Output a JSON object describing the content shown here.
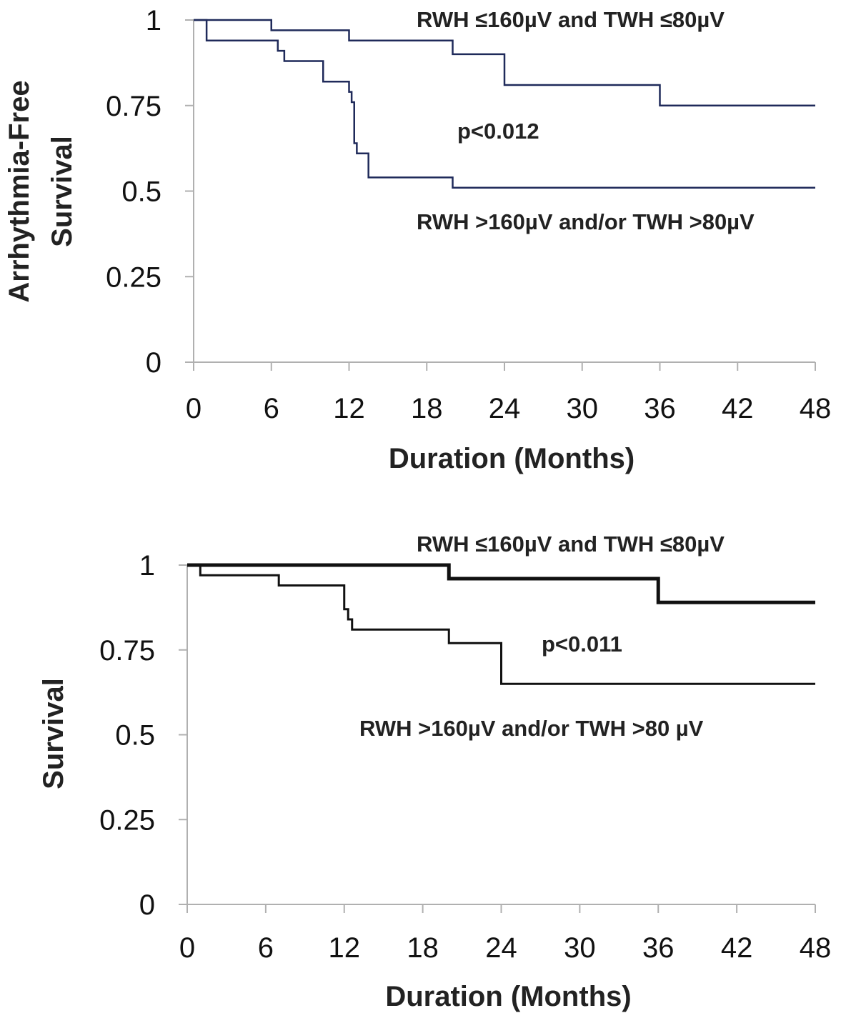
{
  "chart_data": [
    {
      "type": "line",
      "step": true,
      "title": "",
      "xlabel": "Duration  (Months)",
      "ylabel": "Arrhythmia-Free Survival",
      "ylabel_lines": [
        "Arrhythmia-Free",
        "Survival"
      ],
      "xlim": [
        0,
        48
      ],
      "ylim": [
        0,
        1
      ],
      "xticks": [
        "0",
        "6",
        "12",
        "18",
        "24",
        "30",
        "36",
        "42",
        "48"
      ],
      "yticks": [
        "0",
        "0.25",
        "0.5",
        "0.75",
        "1"
      ],
      "grid": false,
      "annotations": [
        "RWH ≤160µV and TWH ≤80µV",
        "p<0.012",
        "RWH >160µV and/or  TWH >80µV"
      ],
      "color": "#1f2a5a",
      "series": [
        {
          "name": "RWH ≤160µV and TWH ≤80µV",
          "width": "thin",
          "x": [
            0,
            6,
            12,
            20,
            24,
            36,
            48
          ],
          "y": [
            1,
            0.97,
            0.94,
            0.9,
            0.81,
            0.75,
            0.75
          ]
        },
        {
          "name": "RWH >160µV and/or  TWH >80µV",
          "width": "thin",
          "x": [
            0,
            1,
            6.5,
            7,
            10,
            12,
            12.2,
            12.4,
            12.6,
            13,
            13.5,
            20,
            48
          ],
          "y": [
            1,
            0.94,
            0.91,
            0.88,
            0.82,
            0.79,
            0.76,
            0.64,
            0.61,
            0.61,
            0.54,
            0.51,
            0.51
          ]
        }
      ]
    },
    {
      "type": "line",
      "step": true,
      "title": "",
      "xlabel": "Duration  (Months)",
      "ylabel": "Survival",
      "ylabel_lines": [
        "Survival"
      ],
      "xlim": [
        0,
        48
      ],
      "ylim": [
        0,
        1
      ],
      "xticks": [
        "0",
        "6",
        "12",
        "18",
        "24",
        "30",
        "36",
        "42",
        "48"
      ],
      "yticks": [
        "0",
        "0.25",
        "0.5",
        "0.75",
        "1"
      ],
      "grid": false,
      "annotations": [
        "RWH ≤160µV and TWH ≤80µV",
        "p<0.011",
        "RWH >160µV and/or TWH >80 µV"
      ],
      "color": "#111111",
      "series": [
        {
          "name": "RWH ≤160µV and TWH ≤80µV",
          "width": "thick",
          "x": [
            0,
            20,
            36,
            48
          ],
          "y": [
            1,
            0.96,
            0.89,
            0.89
          ]
        },
        {
          "name": "RWH >160µV and/or TWH >80 µV",
          "width": "thin",
          "x": [
            0,
            1,
            7,
            12,
            12.3,
            12.6,
            20,
            24,
            48
          ],
          "y": [
            1,
            0.97,
            0.94,
            0.87,
            0.84,
            0.81,
            0.77,
            0.65,
            0.65
          ]
        }
      ]
    }
  ]
}
